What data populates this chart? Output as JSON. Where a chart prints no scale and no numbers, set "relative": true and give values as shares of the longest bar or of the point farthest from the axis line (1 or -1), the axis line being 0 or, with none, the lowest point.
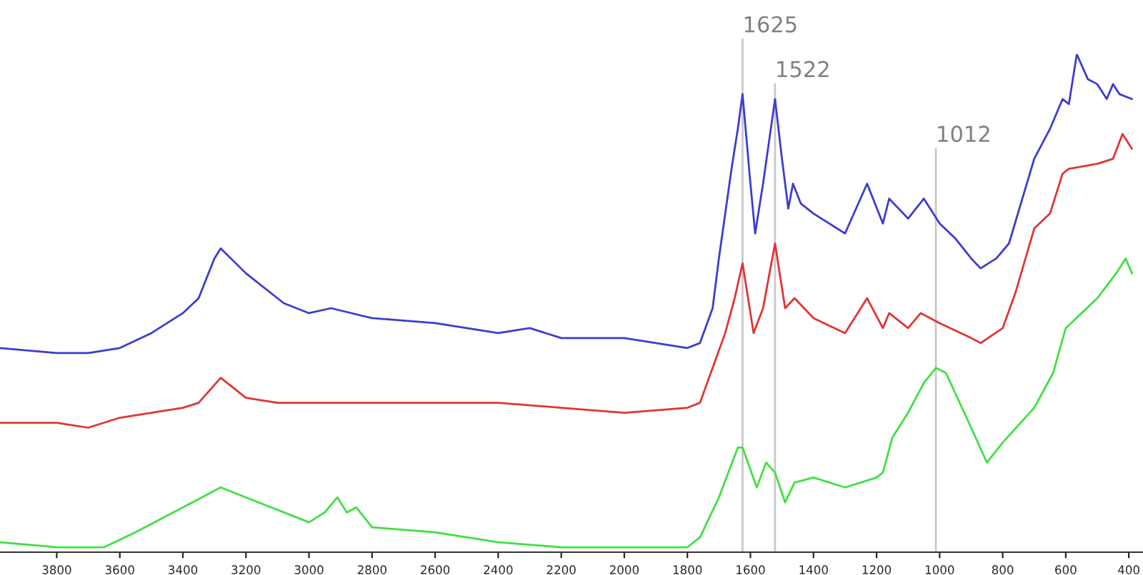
{
  "chart_data": {
    "type": "line",
    "relative": true,
    "tick_labels": "x",
    "grid": false,
    "legend": false,
    "marker": "none",
    "line_style": "solid",
    "xlim": [
      3980,
      355
    ],
    "xticks": [
      3800,
      3600,
      3400,
      3200,
      3000,
      2800,
      2600,
      2400,
      2200,
      2000,
      1800,
      1600,
      1400,
      1200,
      1000,
      800,
      600,
      400
    ],
    "series": [
      {
        "color": "#3c3cd2",
        "x": [
          3980,
          3800,
          3700,
          3600,
          3500,
          3400,
          3350,
          3300,
          3280,
          3200,
          3100,
          3080,
          3000,
          2930,
          2800,
          2600,
          2400,
          2300,
          2200,
          2000,
          1800,
          1760,
          1720,
          1700,
          1660,
          1640,
          1625,
          1600,
          1585,
          1560,
          1522,
          1500,
          1480,
          1465,
          1440,
          1400,
          1300,
          1230,
          1180,
          1160,
          1100,
          1050,
          1000,
          950,
          900,
          870,
          820,
          780,
          700,
          650,
          610,
          590,
          565,
          530,
          500,
          470,
          450,
          430,
          390
        ],
        "values": [
          0.41,
          0.4,
          0.4,
          0.41,
          0.44,
          0.48,
          0.51,
          0.59,
          0.61,
          0.56,
          0.51,
          0.5,
          0.48,
          0.49,
          0.47,
          0.46,
          0.44,
          0.45,
          0.43,
          0.43,
          0.41,
          0.42,
          0.49,
          0.59,
          0.77,
          0.85,
          0.92,
          0.74,
          0.64,
          0.74,
          0.91,
          0.79,
          0.69,
          0.74,
          0.7,
          0.68,
          0.64,
          0.74,
          0.66,
          0.71,
          0.67,
          0.71,
          0.66,
          0.63,
          0.59,
          0.57,
          0.59,
          0.62,
          0.79,
          0.85,
          0.91,
          0.9,
          1,
          0.95,
          0.94,
          0.91,
          0.94,
          0.92,
          0.91
        ]
      },
      {
        "color": "#e03434",
        "x": [
          3980,
          3800,
          3700,
          3600,
          3400,
          3350,
          3280,
          3200,
          3100,
          3000,
          2900,
          2600,
          2400,
          2200,
          2000,
          1800,
          1760,
          1720,
          1680,
          1650,
          1625,
          1590,
          1560,
          1522,
          1490,
          1460,
          1400,
          1300,
          1230,
          1180,
          1160,
          1100,
          1060,
          1000,
          900,
          870,
          800,
          760,
          700,
          650,
          610,
          590,
          500,
          450,
          420,
          390
        ],
        "values": [
          0.26,
          0.26,
          0.25,
          0.27,
          0.29,
          0.3,
          0.35,
          0.31,
          0.3,
          0.3,
          0.3,
          0.3,
          0.3,
          0.29,
          0.28,
          0.29,
          0.3,
          0.37,
          0.44,
          0.51,
          0.58,
          0.44,
          0.49,
          0.62,
          0.49,
          0.51,
          0.47,
          0.44,
          0.51,
          0.45,
          0.48,
          0.45,
          0.48,
          0.46,
          0.43,
          0.42,
          0.45,
          0.52,
          0.65,
          0.68,
          0.76,
          0.77,
          0.78,
          0.79,
          0.84,
          0.81
        ]
      },
      {
        "color": "#40e040",
        "x": [
          3980,
          3800,
          3700,
          3650,
          3550,
          3400,
          3280,
          3200,
          3000,
          2950,
          2910,
          2880,
          2850,
          2800,
          2600,
          2400,
          2200,
          2000,
          1800,
          1760,
          1700,
          1640,
          1625,
          1580,
          1550,
          1522,
          1490,
          1460,
          1400,
          1300,
          1200,
          1180,
          1150,
          1100,
          1050,
          1012,
          980,
          900,
          850,
          800,
          700,
          640,
          600,
          500,
          440,
          410,
          390
        ],
        "values": [
          0.02,
          0.01,
          0.01,
          0.01,
          0.04,
          0.09,
          0.13,
          0.11,
          0.06,
          0.08,
          0.11,
          0.08,
          0.09,
          0.05,
          0.04,
          0.02,
          0.01,
          0.01,
          0.01,
          0.03,
          0.11,
          0.21,
          0.21,
          0.13,
          0.18,
          0.16,
          0.1,
          0.14,
          0.15,
          0.13,
          0.15,
          0.16,
          0.23,
          0.28,
          0.34,
          0.37,
          0.36,
          0.25,
          0.18,
          0.22,
          0.29,
          0.36,
          0.45,
          0.51,
          0.56,
          0.59,
          0.56
        ]
      }
    ],
    "ref_lines": [
      {
        "axis": "x",
        "value": 1625,
        "label": "1625",
        "color": "#c8c8c8"
      },
      {
        "axis": "x",
        "value": 1522,
        "label": "1522",
        "color": "#c8c8c8"
      },
      {
        "axis": "x",
        "value": 1012,
        "label": "1012",
        "color": "#c8c8c8"
      }
    ]
  }
}
